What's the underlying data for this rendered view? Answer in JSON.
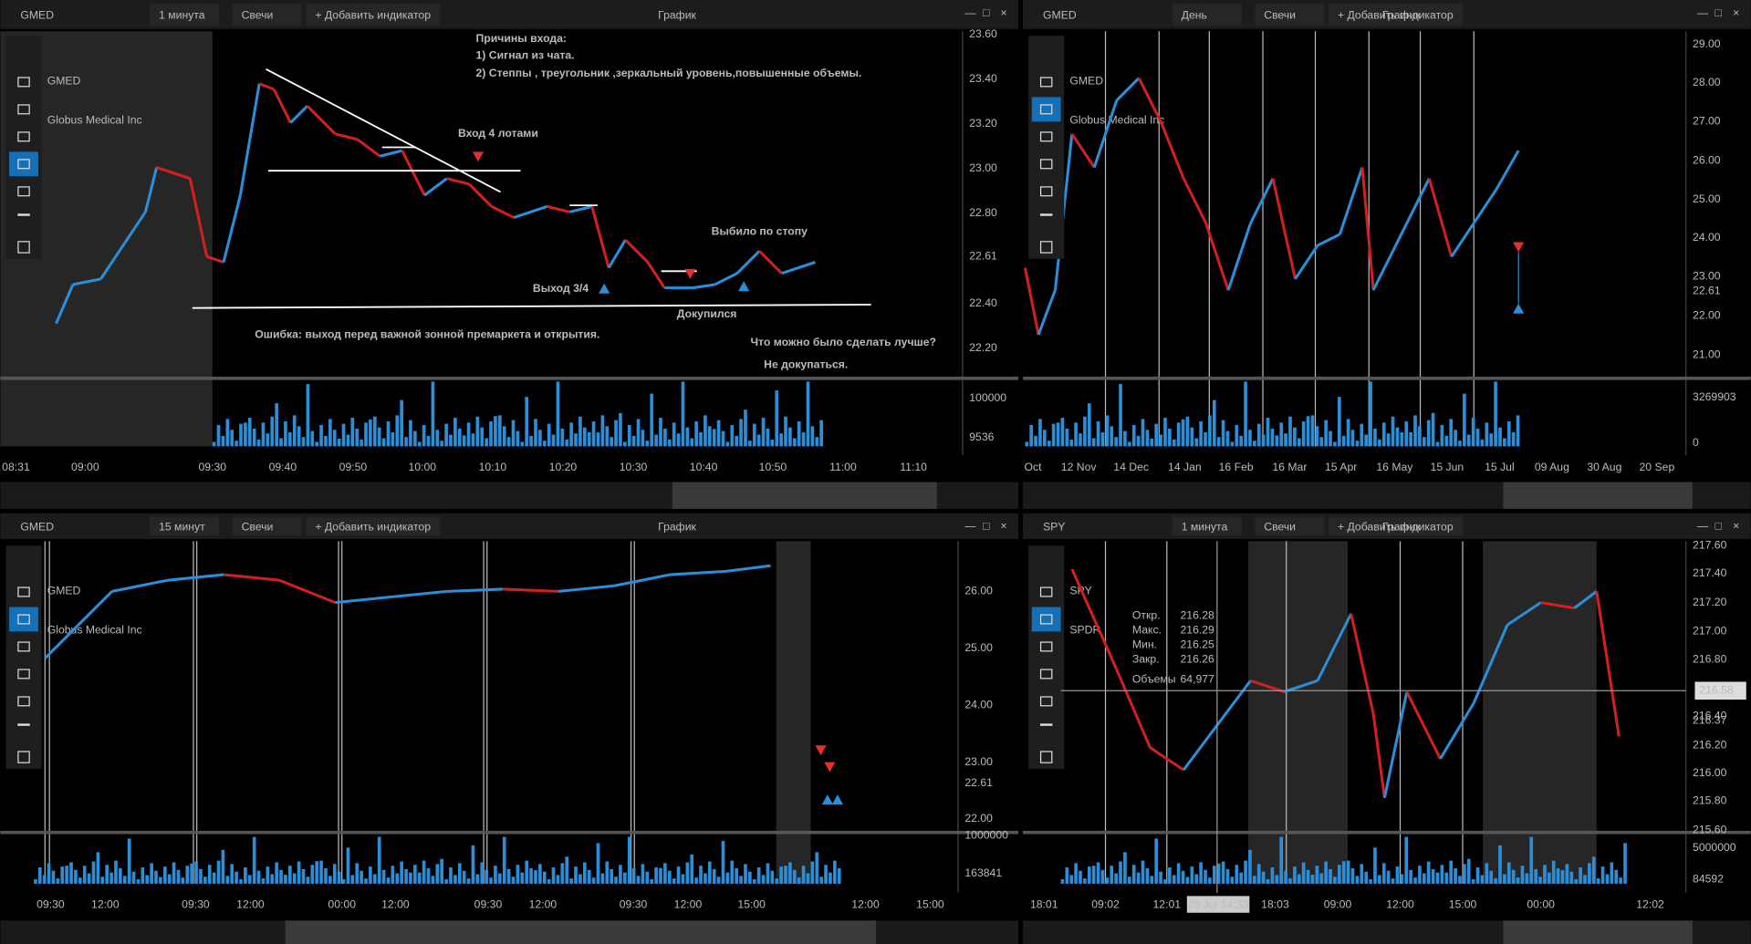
{
  "panels": [
    {
      "toolbar": [
        "GMED",
        "1 минута",
        "Свечи",
        "+ Добавить индикатор"
      ],
      "title": "График",
      "watermark": [
        "GMED",
        "Globus Medical Inc"
      ],
      "price_ticks": [
        "23.60",
        "23.40",
        "23.20",
        "23.00",
        "22.80",
        "22.40",
        "22.20"
      ],
      "last_price": [
        "22.61"
      ],
      "volume_ticks": [
        "100000",
        "9536"
      ],
      "time_ticks": [
        "08:31",
        "09:00",
        "09:30",
        "09:40",
        "09:50",
        "10:00",
        "10:10",
        "10:20",
        "10:30",
        "10:40",
        "10:50",
        "11:00",
        "11:10"
      ],
      "annotations": [
        "Причины входа:",
        "1) Сигнал из чата.",
        "2) Степпы , треугольник ,зеркальный уровень,повышенные объемы.",
        "Вход 4 лотами",
        "Выбило по стопу",
        "Выход 3/4",
        "Докупился",
        "Ошибка: выход перед важной зонной премаркета и открытия.",
        "Что можно  было сделать лучше?",
        "Не докупаться."
      ]
    },
    {
      "toolbar": [
        "GMED",
        "День",
        "Свечи",
        "+ Добавить индикатор"
      ],
      "title": "График",
      "watermark": [
        "GMED",
        "Globus Medical Inc"
      ],
      "price_ticks": [
        "29.00",
        "28.00",
        "27.00",
        "26.00",
        "25.00",
        "24.00",
        "23.00",
        "22.00",
        "21.00"
      ],
      "last_price": [
        "22.61"
      ],
      "volume_ticks": [
        "3269903",
        "0"
      ],
      "time_ticks": [
        "Oct",
        "12 Nov",
        "14 Dec",
        "14 Jan",
        "16 Feb",
        "16 Mar",
        "15 Apr",
        "16 May",
        "15 Jun",
        "15 Jul",
        "09 Aug",
        "30 Aug",
        "20 Sep"
      ]
    },
    {
      "toolbar": [
        "GMED",
        "15 минут",
        "Свечи",
        "+ Добавить индикатор"
      ],
      "title": "График",
      "watermark": [
        "GMED",
        "Globus Medical Inc"
      ],
      "price_ticks": [
        "26.00",
        "25.00",
        "24.00",
        "23.00",
        "22.00"
      ],
      "last_price": [
        "22.61"
      ],
      "volume_ticks": [
        "1000000",
        "163841"
      ],
      "time_ticks": [
        "09:30",
        "12:00",
        "09:30",
        "12:00",
        "00:00",
        "12:00",
        "09:30",
        "12:00",
        "09:30",
        "12:00",
        "15:00",
        "12:00",
        "15:00"
      ]
    },
    {
      "toolbar": [
        "SPY",
        "1 минута",
        "Свечи",
        "+ Добавить индикатор"
      ],
      "title": "График",
      "watermark": [
        "SPY",
        "SPDR"
      ],
      "price_ticks": [
        "217.60",
        "217.40",
        "217.20",
        "217.00",
        "216.80",
        "216.20",
        "216.00",
        "215.80",
        "215.60"
      ],
      "last_price": [
        "216.40",
        "216.37"
      ],
      "crosshair": {
        "price": "216.58",
        "time": "25 Jul 14:33"
      },
      "volume_ticks": [
        "5000000",
        "84592"
      ],
      "time_ticks": [
        "18:01",
        "09:02",
        "12:01",
        "18:03",
        "09:00",
        "12:00",
        "15:00",
        "00:00",
        "12:02"
      ],
      "legend": {
        "labels": [
          "Откр.",
          "Макс.",
          "Мин.",
          "Закр.",
          "Объемы"
        ],
        "values": [
          "216.28",
          "216.29",
          "216.25",
          "216.26",
          "64,977"
        ]
      }
    }
  ]
}
